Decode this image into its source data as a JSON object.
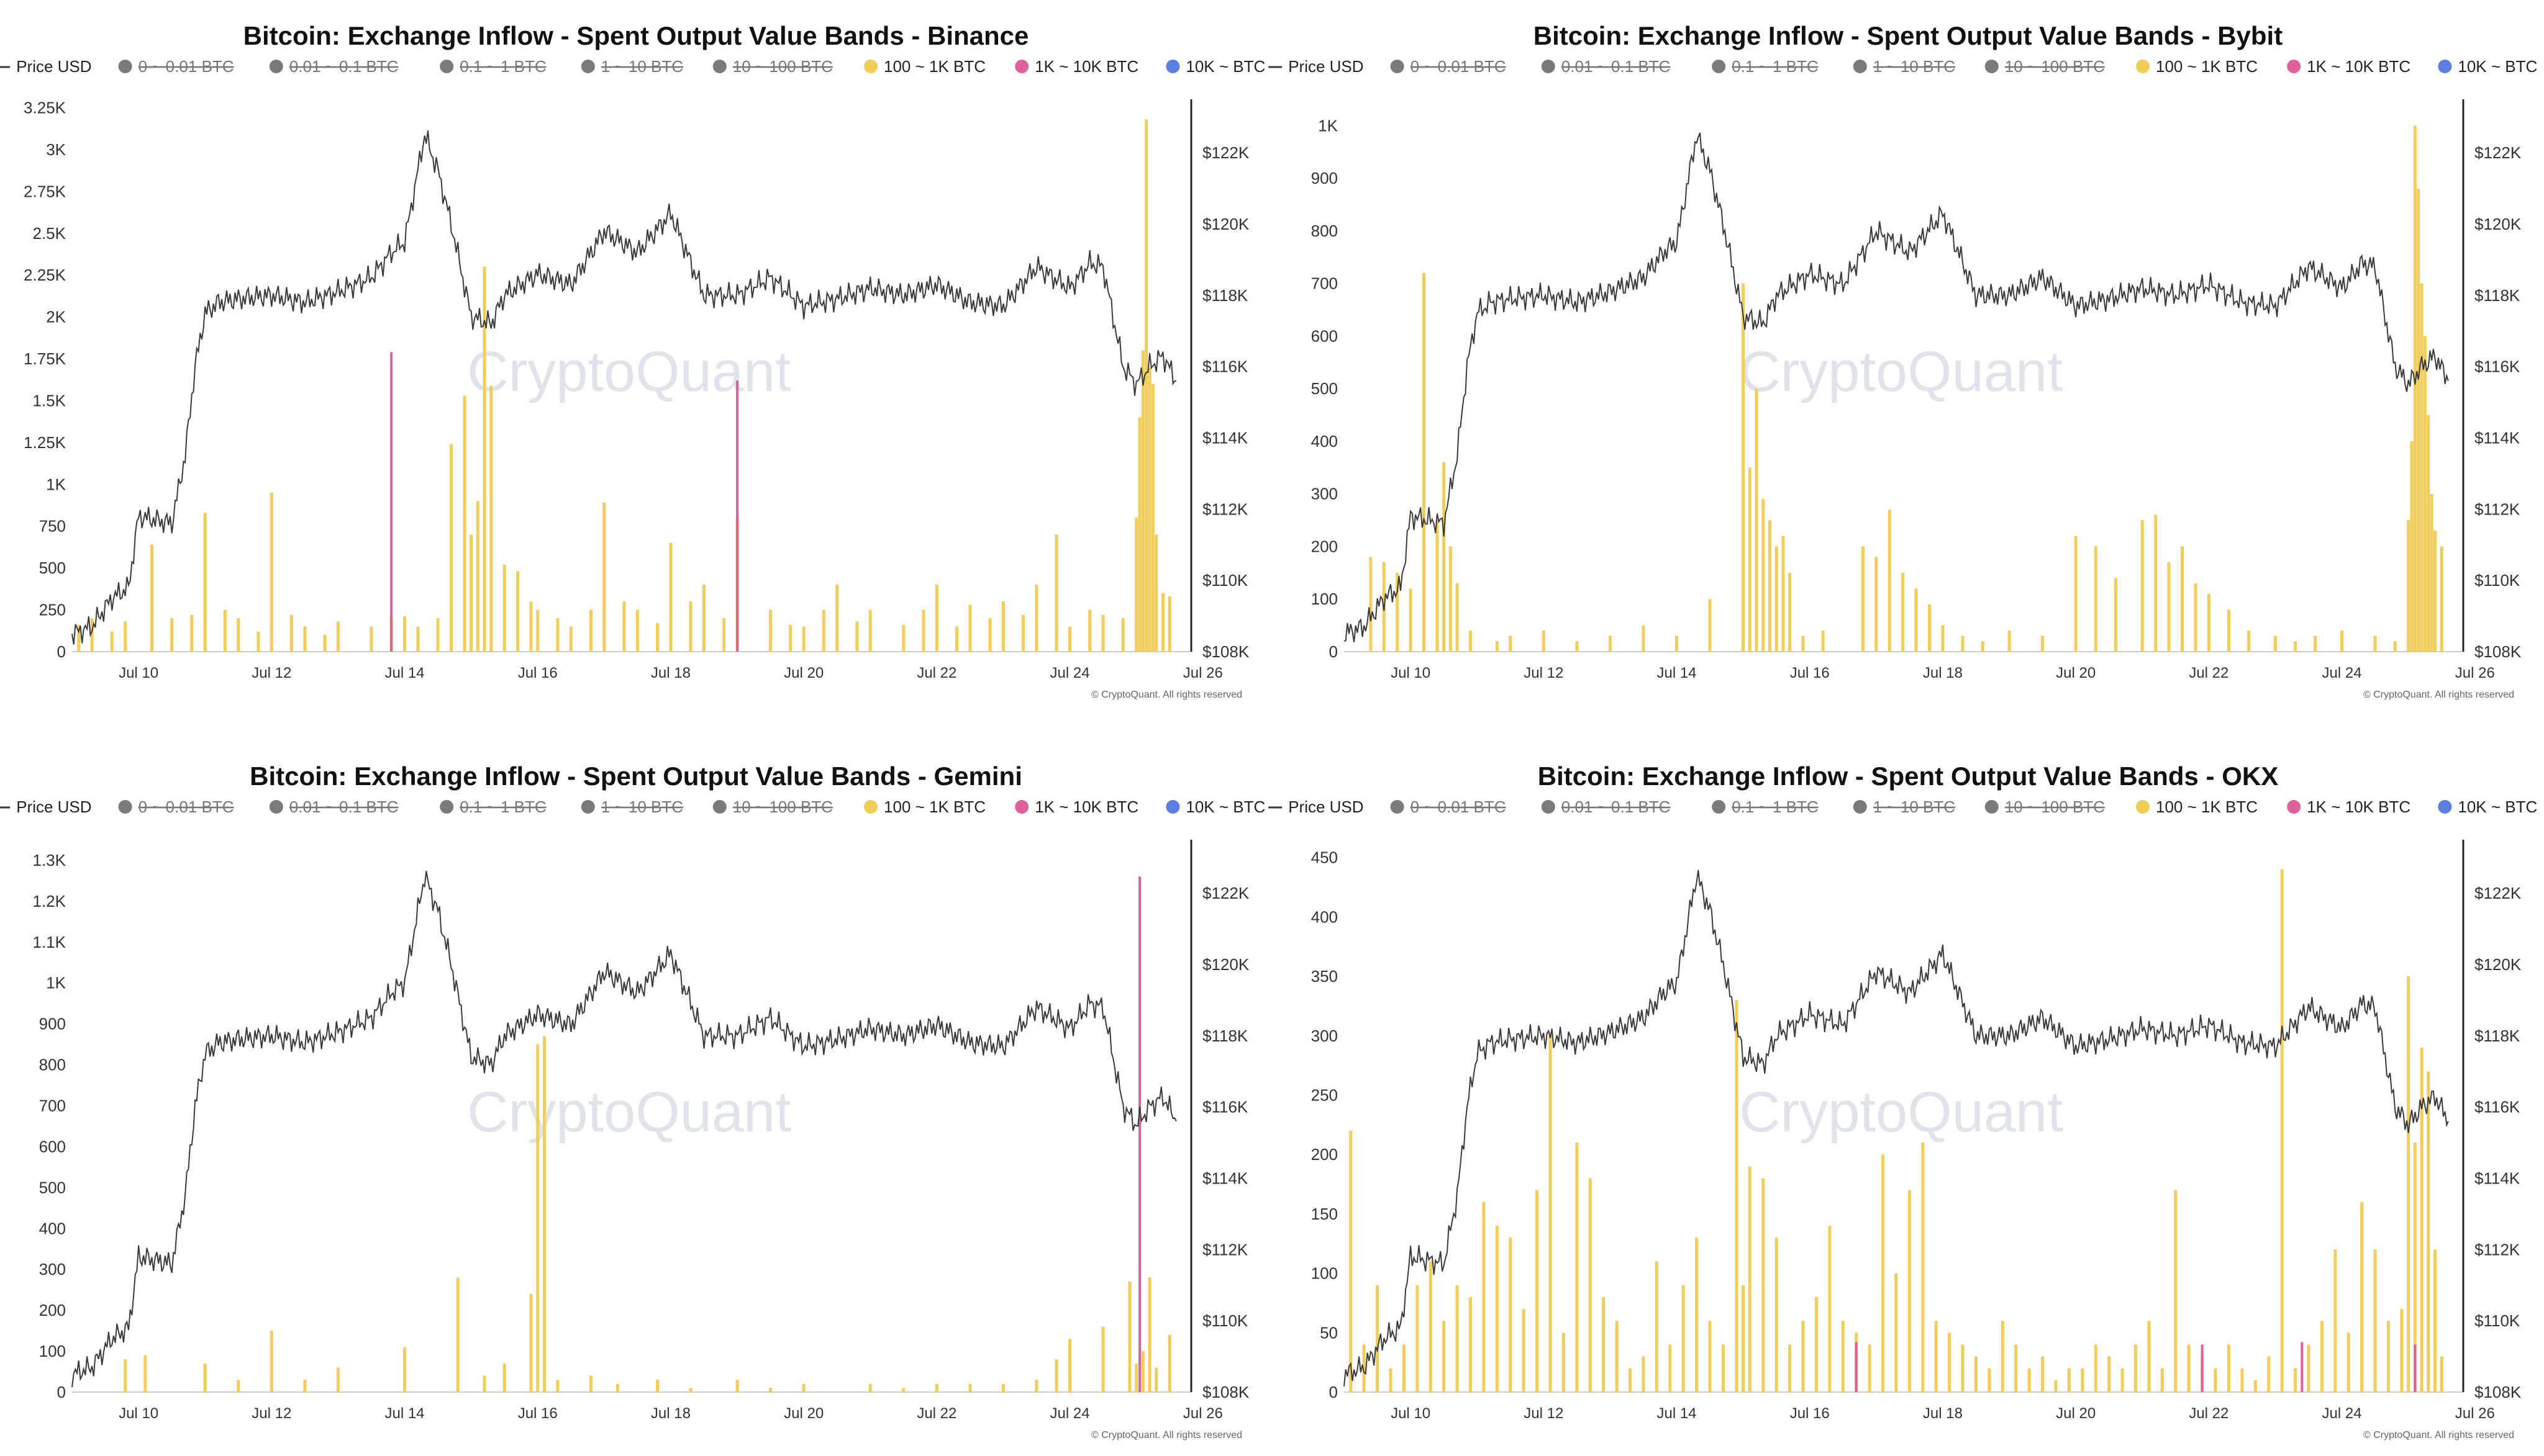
{
  "colors": {
    "price_line": "#3a3a3a",
    "band_100_1k": "#f3cd5a",
    "band_1k_10k": "#e0609c",
    "band_10k": "#5a7fe0",
    "band_off": "#7a7a7a",
    "axis": "#222222"
  },
  "legend": [
    {
      "label": "Price USD",
      "type": "line",
      "active": true,
      "color_key": "price_line"
    },
    {
      "label": "0 ~ 0.01 BTC",
      "type": "dot",
      "active": false,
      "color_key": "band_off"
    },
    {
      "label": "0.01 ~ 0.1 BTC",
      "type": "dot",
      "active": false,
      "color_key": "band_off"
    },
    {
      "label": "0.1 ~ 1 BTC",
      "type": "dot",
      "active": false,
      "color_key": "band_off"
    },
    {
      "label": "1 ~ 10 BTC",
      "type": "dot",
      "active": false,
      "color_key": "band_off"
    },
    {
      "label": "10 ~ 100 BTC",
      "type": "dot",
      "active": false,
      "color_key": "band_off"
    },
    {
      "label": "100 ~ 1K BTC",
      "type": "dot",
      "active": true,
      "color_key": "band_100_1k"
    },
    {
      "label": "1K ~ 10K BTC",
      "type": "dot",
      "active": true,
      "color_key": "band_1k_10k"
    },
    {
      "label": "10K ~ BTC",
      "type": "dot",
      "active": true,
      "color_key": "band_10k"
    }
  ],
  "watermark": "CryptoQuant",
  "copyright": "© CryptoQuant. All rights reserved",
  "x_ticks": [
    "Jul 10",
    "Jul 12",
    "Jul 14",
    "Jul 16",
    "Jul 18",
    "Jul 20",
    "Jul 22",
    "Jul 24",
    "Jul 26"
  ],
  "price_ticks": [
    "$108K",
    "$110K",
    "$112K",
    "$114K",
    "$116K",
    "$118K",
    "$120K",
    "$122K"
  ],
  "price_ylim": [
    108000,
    123500
  ],
  "price_series": {
    "name": "Price USD",
    "x_days": [
      9.0,
      9.3,
      9.6,
      9.85,
      10.0,
      10.5,
      10.7,
      10.85,
      11.0,
      11.2,
      11.5,
      12.0,
      12.5,
      13.0,
      13.5,
      13.8,
      14.0,
      14.3,
      14.5,
      14.7,
      15.0,
      15.3,
      15.5,
      16.0,
      16.5,
      17.0,
      17.5,
      18.0,
      18.5,
      19.0,
      19.5,
      20.0,
      20.5,
      21.0,
      21.5,
      22.0,
      22.5,
      23.0,
      23.5,
      24.0,
      24.3,
      24.5,
      24.8,
      25.0,
      25.2,
      25.4,
      25.6
    ],
    "values": [
      108500,
      108700,
      109500,
      109800,
      111800,
      111600,
      113500,
      116000,
      117500,
      117800,
      117900,
      118000,
      117800,
      118100,
      118500,
      119200,
      119500,
      122500,
      121500,
      120000,
      117400,
      117200,
      118000,
      118600,
      118300,
      119800,
      119200,
      120300,
      118000,
      118000,
      118500,
      117700,
      117900,
      118200,
      118000,
      118300,
      117800,
      117700,
      118800,
      118200,
      118900,
      118800,
      116000,
      115500,
      116000,
      116300,
      115600
    ]
  },
  "chart_data": [
    {
      "type": "bar",
      "title": "Bitcoin: Exchange Inflow - Spent Output Value Bands - Binance",
      "y_ticks": [
        "0",
        "250",
        "500",
        "750",
        "1K",
        "1.25K",
        "1.5K",
        "1.75K",
        "2K",
        "2.25K",
        "2.5K",
        "2.75K",
        "3K",
        "3.25K"
      ],
      "ylim": [
        0,
        3300
      ],
      "y2lim": [
        108000,
        123500
      ],
      "series": [
        {
          "name": "100 ~ 1K BTC",
          "x_days": [
            9.1,
            9.3,
            9.6,
            9.8,
            10.2,
            10.5,
            10.8,
            11.0,
            11.3,
            11.5,
            11.8,
            12.0,
            12.3,
            12.5,
            12.8,
            13.0,
            13.5,
            13.8,
            14.0,
            14.2,
            14.5,
            14.7,
            14.9,
            15.0,
            15.1,
            15.2,
            15.3,
            15.5,
            15.7,
            15.9,
            16.0,
            16.3,
            16.5,
            16.8,
            17.0,
            17.3,
            17.5,
            17.8,
            18.0,
            18.3,
            18.5,
            18.8,
            19.0,
            19.5,
            19.8,
            20.0,
            20.3,
            20.5,
            20.8,
            21.0,
            21.5,
            21.8,
            22.0,
            22.3,
            22.5,
            22.8,
            23.0,
            23.3,
            23.5,
            23.8,
            24.0,
            24.3,
            24.5,
            24.8,
            25.0,
            25.05,
            25.1,
            25.15,
            25.2,
            25.25,
            25.3,
            25.4,
            25.5
          ],
          "values": [
            160,
            200,
            120,
            180,
            640,
            200,
            220,
            830,
            250,
            200,
            120,
            950,
            220,
            150,
            100,
            180,
            150,
            200,
            210,
            150,
            200,
            1240,
            1530,
            700,
            900,
            2300,
            1590,
            520,
            480,
            300,
            250,
            200,
            150,
            250,
            890,
            300,
            250,
            170,
            650,
            300,
            400,
            200,
            800,
            250,
            160,
            150,
            250,
            400,
            180,
            250,
            160,
            250,
            400,
            150,
            280,
            200,
            300,
            220,
            400,
            700,
            150,
            250,
            220,
            200,
            800,
            1400,
            1800,
            3180,
            1700,
            1600,
            700,
            350,
            330
          ]
        },
        {
          "name": "1K ~ 10K BTC",
          "x_days": [
            13.8,
            19.0
          ],
          "values": [
            1790,
            1620
          ]
        }
      ]
    },
    {
      "type": "bar",
      "title": "Bitcoin: Exchange Inflow - Spent Output Value Bands - Bybit",
      "y_ticks": [
        "0",
        "100",
        "200",
        "300",
        "400",
        "500",
        "600",
        "700",
        "800",
        "900",
        "1K"
      ],
      "ylim": [
        0,
        1050
      ],
      "y2lim": [
        108000,
        123500
      ],
      "series": [
        {
          "name": "100 ~ 1K BTC",
          "x_days": [
            9.4,
            9.6,
            9.8,
            10.0,
            10.2,
            10.4,
            10.5,
            10.6,
            10.7,
            10.9,
            11.3,
            11.5,
            12.0,
            12.5,
            13.0,
            13.5,
            14.0,
            14.5,
            15.0,
            15.1,
            15.2,
            15.3,
            15.4,
            15.5,
            15.6,
            15.7,
            15.9,
            16.2,
            16.8,
            17.0,
            17.2,
            17.4,
            17.6,
            17.8,
            18.0,
            18.3,
            18.6,
            19.0,
            19.5,
            20.0,
            20.3,
            20.6,
            21.0,
            21.2,
            21.4,
            21.6,
            21.8,
            22.0,
            22.3,
            22.6,
            23.0,
            23.3,
            23.6,
            24.0,
            24.5,
            24.8,
            25.0,
            25.05,
            25.1,
            25.15,
            25.2,
            25.25,
            25.3,
            25.35,
            25.4,
            25.5
          ],
          "values": [
            180,
            170,
            150,
            120,
            720,
            250,
            360,
            200,
            130,
            40,
            20,
            30,
            40,
            20,
            30,
            50,
            30,
            100,
            700,
            350,
            500,
            290,
            250,
            200,
            220,
            150,
            30,
            40,
            200,
            180,
            270,
            150,
            120,
            90,
            50,
            30,
            20,
            40,
            30,
            220,
            200,
            140,
            250,
            260,
            170,
            200,
            130,
            110,
            80,
            40,
            30,
            20,
            30,
            40,
            30,
            20,
            250,
            400,
            1000,
            880,
            700,
            600,
            450,
            300,
            230,
            200
          ]
        }
      ]
    },
    {
      "type": "bar",
      "title": "Bitcoin: Exchange Inflow - Spent Output Value Bands - Gemini",
      "y_ticks": [
        "0",
        "100",
        "200",
        "300",
        "400",
        "500",
        "600",
        "700",
        "800",
        "900",
        "1K",
        "1.1K",
        "1.2K",
        "1.3K"
      ],
      "ylim": [
        0,
        1350
      ],
      "y2lim": [
        108000,
        123500
      ],
      "series": [
        {
          "name": "100 ~ 1K BTC",
          "x_days": [
            9.8,
            10.1,
            11.0,
            11.5,
            12.0,
            12.5,
            13.0,
            14.0,
            14.8,
            15.2,
            15.5,
            15.9,
            16.0,
            16.1,
            16.3,
            16.8,
            17.2,
            17.8,
            18.3,
            19.0,
            19.5,
            20.0,
            21.0,
            21.5,
            22.0,
            22.5,
            23.0,
            23.5,
            23.8,
            24.0,
            24.5,
            24.9,
            25.0,
            25.1,
            25.2,
            25.3,
            25.5
          ],
          "values": [
            80,
            90,
            70,
            30,
            150,
            30,
            60,
            110,
            280,
            40,
            70,
            240,
            850,
            870,
            30,
            40,
            20,
            30,
            10,
            30,
            10,
            20,
            20,
            10,
            20,
            20,
            20,
            30,
            80,
            130,
            160,
            270,
            70,
            100,
            280,
            60,
            140
          ]
        },
        {
          "name": "1K ~ 10K BTC",
          "x_days": [
            25.05
          ],
          "values": [
            1260
          ]
        }
      ]
    },
    {
      "type": "bar",
      "title": "Bitcoin: Exchange Inflow - Spent Output Value Bands - OKX",
      "y_ticks": [
        "0",
        "50",
        "100",
        "150",
        "200",
        "250",
        "300",
        "350",
        "400",
        "450"
      ],
      "ylim": [
        0,
        465
      ],
      "y2lim": [
        108000,
        123500
      ],
      "series": [
        {
          "name": "100 ~ 1K BTC",
          "x_days": [
            9.1,
            9.3,
            9.5,
            9.7,
            9.9,
            10.1,
            10.3,
            10.5,
            10.7,
            10.9,
            11.1,
            11.3,
            11.5,
            11.7,
            11.9,
            12.1,
            12.3,
            12.5,
            12.7,
            12.9,
            13.1,
            13.3,
            13.5,
            13.7,
            13.9,
            14.1,
            14.3,
            14.5,
            14.7,
            14.9,
            15.0,
            15.1,
            15.3,
            15.5,
            15.7,
            15.9,
            16.1,
            16.3,
            16.5,
            16.7,
            16.9,
            17.1,
            17.3,
            17.5,
            17.7,
            17.9,
            18.1,
            18.3,
            18.5,
            18.7,
            18.9,
            19.1,
            19.3,
            19.5,
            19.7,
            19.9,
            20.1,
            20.3,
            20.5,
            20.7,
            20.9,
            21.1,
            21.3,
            21.5,
            21.7,
            21.9,
            22.1,
            22.3,
            22.5,
            22.7,
            22.9,
            23.1,
            23.3,
            23.5,
            23.7,
            23.9,
            24.1,
            24.3,
            24.5,
            24.7,
            24.9,
            25.0,
            25.1,
            25.2,
            25.3,
            25.4,
            25.5
          ],
          "values": [
            220,
            40,
            90,
            20,
            40,
            90,
            110,
            60,
            90,
            80,
            160,
            140,
            130,
            70,
            170,
            300,
            50,
            210,
            180,
            80,
            60,
            20,
            30,
            110,
            40,
            90,
            130,
            60,
            40,
            330,
            90,
            190,
            180,
            130,
            40,
            60,
            80,
            140,
            60,
            50,
            40,
            200,
            100,
            170,
            210,
            60,
            50,
            40,
            30,
            20,
            60,
            40,
            20,
            30,
            10,
            20,
            20,
            40,
            30,
            20,
            40,
            60,
            20,
            170,
            40,
            30,
            20,
            40,
            20,
            10,
            30,
            440,
            20,
            40,
            60,
            120,
            50,
            160,
            120,
            60,
            70,
            350,
            210,
            290,
            270,
            120,
            30
          ]
        },
        {
          "name": "1K ~ 10K BTC",
          "x_days": [
            16.7,
            21.9,
            23.4,
            25.1
          ],
          "values": [
            42,
            40,
            42,
            40
          ]
        }
      ]
    }
  ]
}
